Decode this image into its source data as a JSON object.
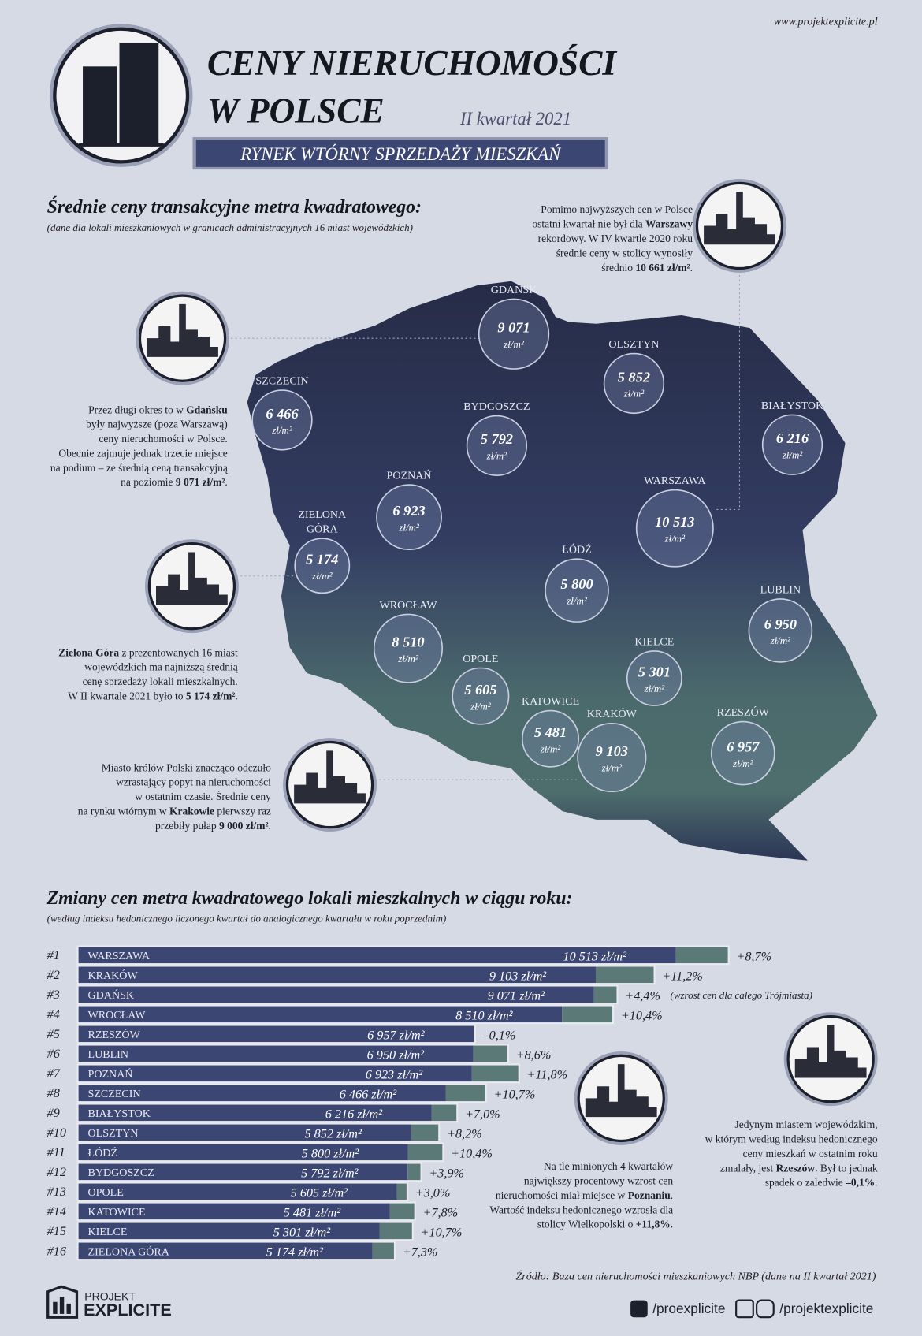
{
  "header": {
    "url": "www.projektexplicite.pl",
    "title_line1": "CENY NIERUCHOMOŚCI",
    "title_line2": "W POLSCE",
    "period": "II kwartał 2021",
    "banner": "RYNEK WTÓRNY SPRZEDAŻY MIESZKAŃ"
  },
  "map": {
    "title": "Średnie ceny transakcyjne metra kwadratowego:",
    "subtitle": "(dane dla lokali mieszkaniowych w granicach administracyjnych 16 miast wojewódzkich)",
    "unit": "zł/m²",
    "cities": [
      {
        "name": "GDAŃSK",
        "value": "9 071"
      },
      {
        "name": "OLSZTYN",
        "value": "5 852"
      },
      {
        "name": "SZCZECIN",
        "value": "6 466"
      },
      {
        "name": "BYDGOSZCZ",
        "value": "5 792"
      },
      {
        "name": "BIAŁYSTOK",
        "value": "6 216"
      },
      {
        "name": "POZNAŃ",
        "value": "6 923"
      },
      {
        "name": "WARSZAWA",
        "value": "10 513"
      },
      {
        "name": "ZIELONA",
        "name2": "GÓRA",
        "value": "5 174"
      },
      {
        "name": "ŁÓDŹ",
        "value": "5 800"
      },
      {
        "name": "LUBLIN",
        "value": "6 950"
      },
      {
        "name": "WROCŁAW",
        "value": "8 510"
      },
      {
        "name": "KIELCE",
        "value": "5 301"
      },
      {
        "name": "OPOLE",
        "value": "5 605"
      },
      {
        "name": "KATOWICE",
        "value": "5 481"
      },
      {
        "name": "KRAKÓW",
        "value": "9 103"
      },
      {
        "name": "RZESZÓW",
        "value": "6 957"
      }
    ]
  },
  "notes": {
    "warszawa": [
      [
        "Pomimo najwyższych cen w Polsce"
      ],
      [
        "ostatni kwartał nie był dla ",
        {
          "bold": "Warszawy"
        }
      ],
      [
        "rekordowy. W IV kwartle 2020 roku"
      ],
      [
        "średnie ceny w stolicy wynosiły"
      ],
      [
        "średnio ",
        {
          "bold": "10 661 zł/m²"
        },
        "."
      ]
    ],
    "gdansk": [
      [
        "Przez długi okres to w ",
        {
          "bold": "Gdańsku"
        }
      ],
      [
        "były najwyższe (poza Warszawą)"
      ],
      [
        "ceny nieruchomości w Polsce."
      ],
      [
        "Obecnie zajmuje jednak trzecie miejsce"
      ],
      [
        "na podium – ze średnią ceną transakcyjną"
      ],
      [
        "na poziomie ",
        {
          "bold": "9 071 zł/m²"
        },
        "."
      ]
    ],
    "zielona": [
      [
        {
          "bold": "Zielona Góra"
        },
        " z prezentowanych 16 miast"
      ],
      [
        "wojewódzkich ma najniższą średnią"
      ],
      [
        "cenę sprzedaży lokali mieszkalnych."
      ],
      [
        "W II kwartale 2021 było to ",
        {
          "bold": "5 174 zł/m²"
        },
        "."
      ]
    ],
    "krakow": [
      [
        "Miasto królów Polski znacząco odczuło"
      ],
      [
        "wzrastający popyt na nieruchomości"
      ],
      [
        "w ostatnim czasie. Średnie ceny"
      ],
      [
        "na rynku wtórnym w ",
        {
          "bold": "Krakowie"
        },
        " pierwszy raz"
      ],
      [
        "przebiły pułap ",
        {
          "bold": "9 000 zł/m²"
        },
        "."
      ]
    ],
    "poznan": [
      [
        "Na tle minionych 4 kwartałów"
      ],
      [
        "największy procentowy wzrost cen"
      ],
      [
        "nieruchomości miał miejsce w ",
        {
          "bold": "Poznaniu"
        },
        "."
      ],
      [
        "Wartość indeksu hedonicznego wzrosła dla"
      ],
      [
        "stolicy Wielkopolski o ",
        {
          "bold": "+11,8%"
        },
        "."
      ]
    ],
    "rzeszow": [
      [
        "Jedynym miastem wojewódzkim,"
      ],
      [
        "w którym według indeksu hedonicznego"
      ],
      [
        "ceny mieszkań w ostatnim roku"
      ],
      [
        "zmalały, jest ",
        {
          "bold": "Rzeszów"
        },
        ". Był to jednak"
      ],
      [
        "spadek o zaledwie ",
        {
          "bold": "–0,1%"
        },
        "."
      ]
    ]
  },
  "chart_data": {
    "type": "bar",
    "title": "Zmiany cen metra kwadratowego lokali mieszkalnych w ciągu roku:",
    "subtitle": "(według indeksu hedonicznego liczonego kwartał do analogicznego kwartału w roku poprzednim)",
    "ranks": [
      "#1",
      "#2",
      "#3",
      "#4",
      "#5",
      "#6",
      "#7",
      "#8",
      "#9",
      "#10",
      "#11",
      "#12",
      "#13",
      "#14",
      "#15",
      "#16"
    ],
    "categories": [
      "WARSZAWA",
      "KRAKÓW",
      "GDAŃSK",
      "WROCŁAW",
      "RZESZÓW",
      "LUBLIN",
      "POZNAŃ",
      "SZCZECIN",
      "BIAŁYSTOK",
      "OLSZTYN",
      "ŁÓDŹ",
      "BYDGOSZCZ",
      "OPOLE",
      "KATOWICE",
      "KIELCE",
      "ZIELONA GÓRA"
    ],
    "values": [
      10513,
      9103,
      9071,
      8510,
      6957,
      6950,
      6923,
      6466,
      6216,
      5852,
      5800,
      5792,
      5605,
      5481,
      5301,
      5174
    ],
    "value_labels": [
      "10 513 zł/m²",
      "9 103 zł/m²",
      "9 071 zł/m²",
      "8 510 zł/m²",
      "6 957 zł/m²",
      "6 950 zł/m²",
      "6 923 zł/m²",
      "6 466 zł/m²",
      "6 216 zł/m²",
      "5 852 zł/m²",
      "5 800 zł/m²",
      "5 792 zł/m²",
      "5 605 zł/m²",
      "5 481 zł/m²",
      "5 301 zł/m²",
      "5 174 zł/m²"
    ],
    "changes": [
      8.7,
      11.2,
      4.4,
      10.4,
      -0.1,
      8.6,
      11.8,
      10.7,
      7.0,
      8.2,
      10.4,
      3.9,
      3.0,
      7.8,
      10.7,
      7.3
    ],
    "change_labels": [
      "+8,7%",
      "+11,2%",
      "+4,4%",
      "+10,4%",
      "–0,1%",
      "+8,6%",
      "+11,8%",
      "+10,7%",
      "+7,0%",
      "+8,2%",
      "+10,4%",
      "+3,9%",
      "+3,0%",
      "+7,8%",
      "+10,7%",
      "+7,3%"
    ],
    "bar_color": "#3c4672",
    "change_color": "#5b7a77",
    "annotation": "(wzrost cen dla całego Trójmiasta)"
  },
  "footer": {
    "source": "Źródło: Baza cen nieruchomości mieszkaniowych NBP (dane na II kwartał 2021)",
    "logo_top": "PROJEKT",
    "logo_bottom": "EXPLICITE",
    "twitter": "/proexplicite",
    "facebook": "/projektexplicite"
  }
}
